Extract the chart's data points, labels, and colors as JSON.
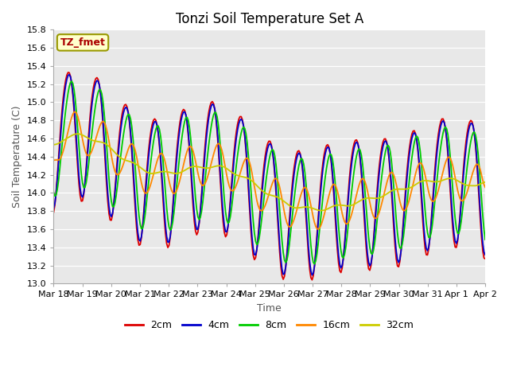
{
  "title": "Tonzi Soil Temperature Set A",
  "xlabel": "Time",
  "ylabel": "Soil Temperature (C)",
  "ylim": [
    13.0,
    15.8
  ],
  "yticks": [
    13.0,
    13.2,
    13.4,
    13.6,
    13.8,
    14.0,
    14.2,
    14.4,
    14.6,
    14.8,
    15.0,
    15.2,
    15.4,
    15.6,
    15.8
  ],
  "xtick_labels": [
    "Mar 18",
    "Mar 19",
    "Mar 20",
    "Mar 21",
    "Mar 22",
    "Mar 23",
    "Mar 24",
    "Mar 25",
    "Mar 26",
    "Mar 27",
    "Mar 28",
    "Mar 29",
    "Mar 30",
    "Mar 31",
    "Apr 1",
    "Apr 2"
  ],
  "legend_label": "TZ_fmet",
  "line_labels": [
    "2cm",
    "4cm",
    "8cm",
    "16cm",
    "32cm"
  ],
  "line_colors": [
    "#dd0000",
    "#0000cc",
    "#00cc00",
    "#ff8800",
    "#cccc00"
  ],
  "plot_bg_color": "#e8e8e8",
  "grid_color": "#ffffff",
  "title_fontsize": 12,
  "axis_fontsize": 9,
  "tick_fontsize": 8,
  "legend_fontsize": 9,
  "linewidth": 1.3,
  "figsize": [
    6.4,
    4.8
  ],
  "dpi": 100
}
